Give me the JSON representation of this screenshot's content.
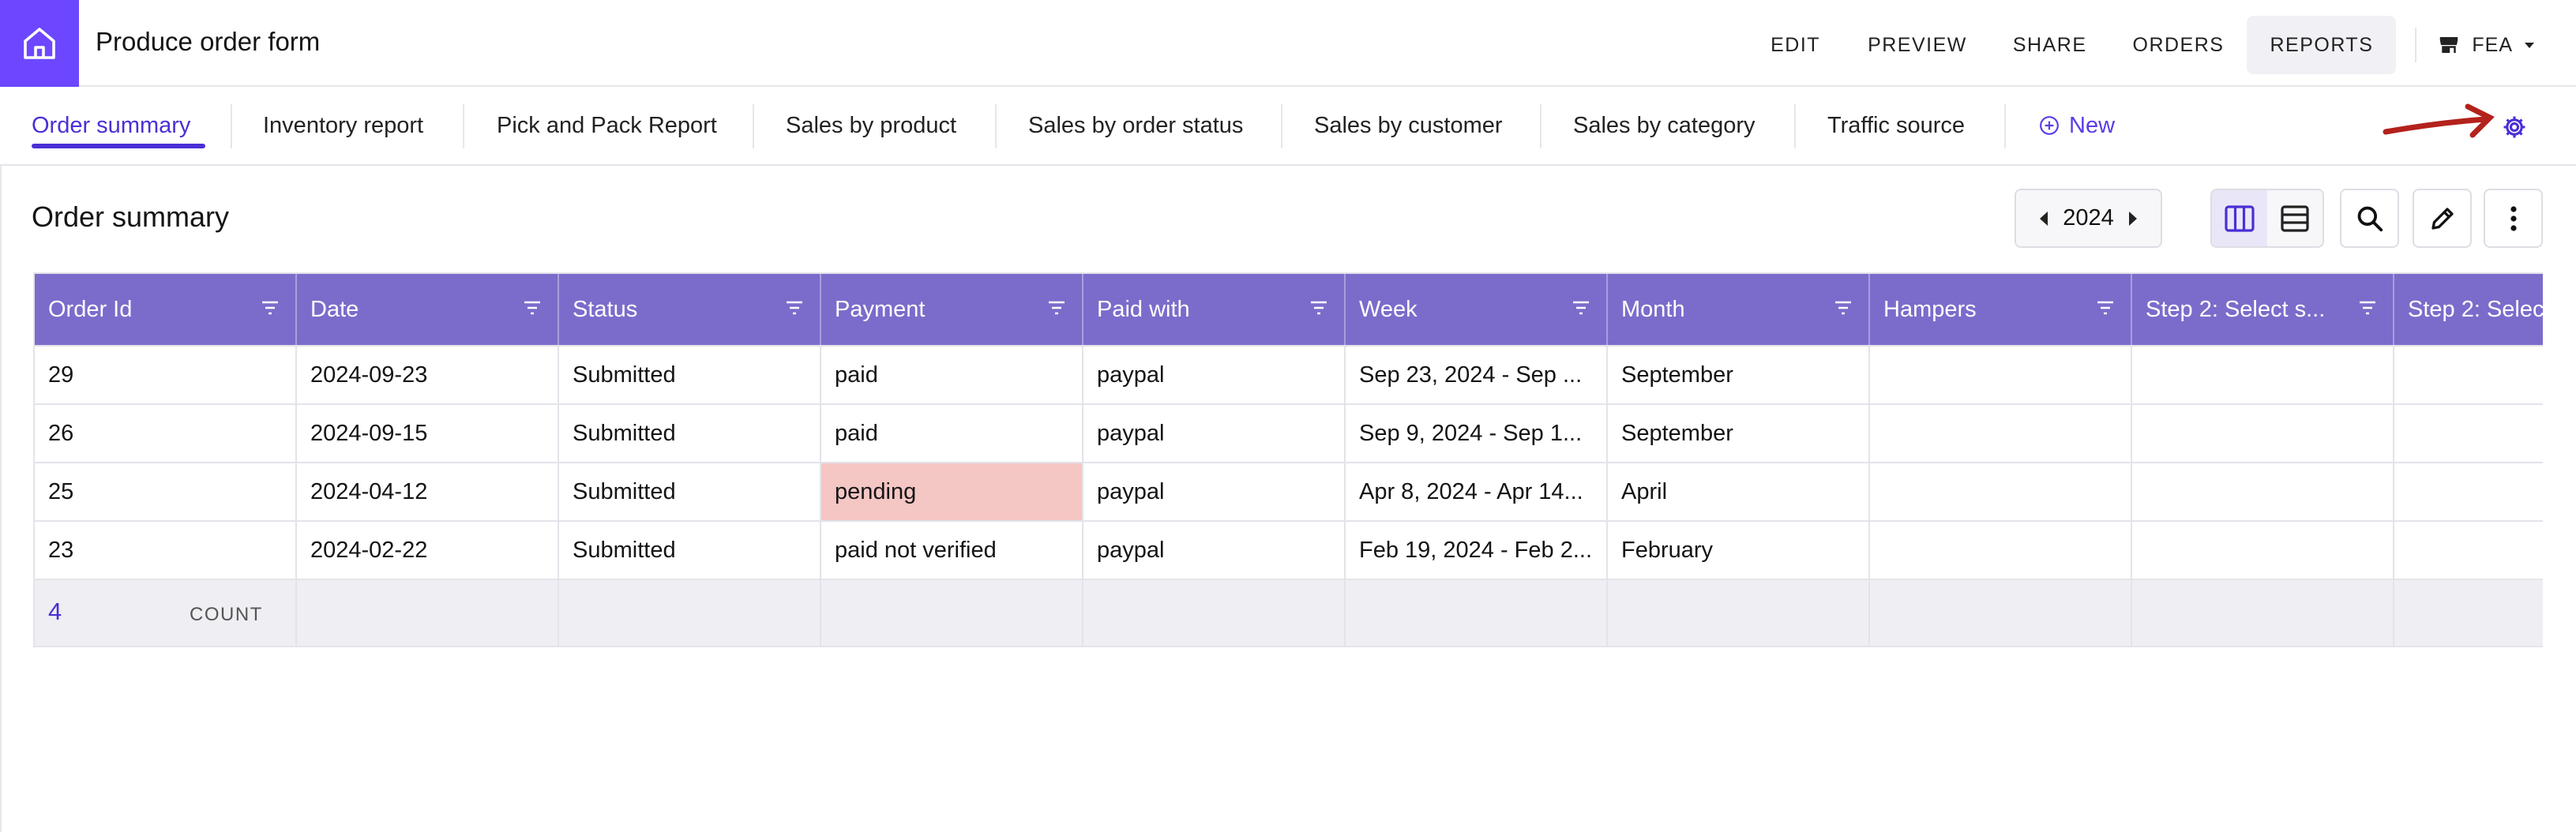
{
  "app": {
    "title": "Produce order form"
  },
  "nav": {
    "items": [
      "EDIT",
      "PREVIEW",
      "SHARE",
      "ORDERS",
      "REPORTS"
    ],
    "active": "REPORTS",
    "workspace": "FEA"
  },
  "tabs": {
    "items": [
      "Order summary",
      "Inventory report",
      "Pick and Pack Report",
      "Sales by product",
      "Sales by order status",
      "Sales by customer",
      "Sales by category",
      "Traffic source"
    ],
    "active": "Order summary",
    "new_label": "New"
  },
  "section": {
    "title": "Order summary"
  },
  "pager": {
    "year": "2024"
  },
  "table": {
    "columns": [
      "Order Id",
      "Date",
      "Status",
      "Payment",
      "Paid with",
      "Week",
      "Month",
      "Hampers",
      "Step 2: Select s...",
      "Step 2: Selec"
    ],
    "rows": [
      [
        "29",
        "2024-09-23",
        "Submitted",
        "paid",
        "paypal",
        "Sep 23, 2024 - Sep ...",
        "September",
        "",
        "",
        ""
      ],
      [
        "26",
        "2024-09-15",
        "Submitted",
        "paid",
        "paypal",
        "Sep 9, 2024 - Sep 1...",
        "September",
        "",
        "",
        ""
      ],
      [
        "25",
        "2024-04-12",
        "Submitted",
        "pending",
        "paypal",
        "Apr 8, 2024 - Apr 14...",
        "April",
        "",
        "",
        ""
      ],
      [
        "23",
        "2024-02-22",
        "Submitted",
        "paid not verified",
        "paypal",
        "Feb 19, 2024 - Feb 2...",
        "February",
        "",
        "",
        ""
      ]
    ],
    "footer": {
      "count": "4",
      "count_label": "COUNT"
    }
  },
  "colors": {
    "accent": "#6c47ff",
    "header_bg": "#7b6ccb",
    "pending_bg": "#f4c6c4",
    "annotation_arrow": "#b3221c"
  },
  "icons": [
    "home-icon",
    "store-icon",
    "chevron-down-icon",
    "add-circle-icon",
    "gear-icon",
    "arrow-annotation-icon",
    "caret-left-icon",
    "caret-right-icon",
    "columns-view-icon",
    "rows-view-icon",
    "search-icon",
    "pencil-icon",
    "more-vertical-icon",
    "filter-icon"
  ]
}
